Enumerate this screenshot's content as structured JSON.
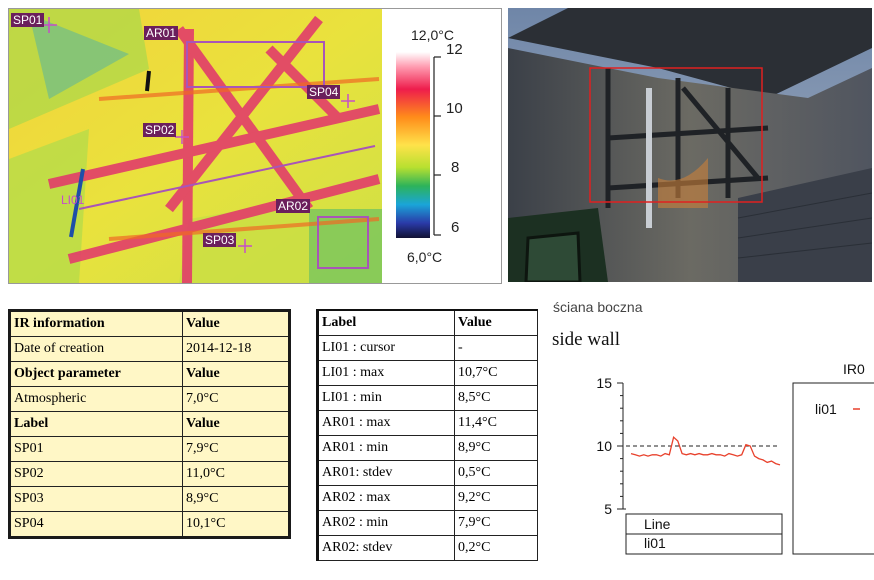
{
  "thermal": {
    "markers": [
      {
        "id": "sp01",
        "label": "SP01"
      },
      {
        "id": "ar01",
        "label": "AR01"
      },
      {
        "id": "sp04",
        "label": "SP04"
      },
      {
        "id": "sp02",
        "label": "SP02"
      },
      {
        "id": "ar02",
        "label": "AR02"
      },
      {
        "id": "sp03",
        "label": "SP03"
      }
    ],
    "line_label": "LI01",
    "scale": {
      "max_label": "12,0°C",
      "min_label": "6,0°C",
      "ticks": [
        "12",
        "10",
        "8",
        "6"
      ]
    }
  },
  "table_left": {
    "sections": [
      {
        "header": [
          "IR information",
          "Value"
        ],
        "rows": [
          [
            "Date of creation",
            "2014-12-18"
          ]
        ]
      },
      {
        "header": [
          "Object parameter",
          "Value"
        ],
        "rows": [
          [
            "Atmospheric",
            "7,0°C"
          ]
        ]
      },
      {
        "header": [
          "Label",
          "Value"
        ],
        "rows": [
          [
            "SP01",
            "7,9°C"
          ],
          [
            "SP02",
            "11,0°C"
          ],
          [
            "SP03",
            "8,9°C"
          ],
          [
            "SP04",
            "10,1°C"
          ]
        ]
      }
    ]
  },
  "table_right": {
    "header": [
      "Label",
      "Value"
    ],
    "rows": [
      [
        "LI01 : cursor",
        "-"
      ],
      [
        "LI01 : max",
        "10,7°C"
      ],
      [
        "LI01 : min",
        "8,5°C"
      ],
      [
        "AR01 : max",
        "11,4°C"
      ],
      [
        "AR01 : min",
        "8,9°C"
      ],
      [
        "AR01: stdev",
        "0,5°C"
      ],
      [
        "AR02 : max",
        "9,2°C"
      ],
      [
        "AR02 : min",
        "7,9°C"
      ],
      [
        "AR02: stdev",
        "0,2°C"
      ]
    ]
  },
  "captions": {
    "polish": "ściana boczna",
    "english": "side wall"
  },
  "chart_data": {
    "type": "line",
    "title": "",
    "legend_header": "IR0",
    "legend_series_label": "li01",
    "table_header": "Line",
    "table_value": "li01",
    "y_ticks": [
      "15",
      "10",
      "5"
    ],
    "ylim": [
      5,
      15
    ],
    "reference_line": 10,
    "series": [
      {
        "name": "li01",
        "color": "#e8412c",
        "values": [
          9.4,
          9.3,
          9.2,
          9.3,
          9.2,
          9.3,
          9.3,
          9.2,
          9.4,
          9.3,
          10.7,
          10.4,
          9.4,
          9.3,
          9.4,
          9.3,
          9.4,
          9.3,
          9.3,
          9.4,
          9.3,
          9.3,
          9.2,
          9.4,
          9.3,
          9.2,
          9.3,
          10.1,
          10.0,
          9.2,
          9.0,
          8.9,
          8.7,
          8.8,
          8.6,
          8.5
        ]
      }
    ]
  }
}
